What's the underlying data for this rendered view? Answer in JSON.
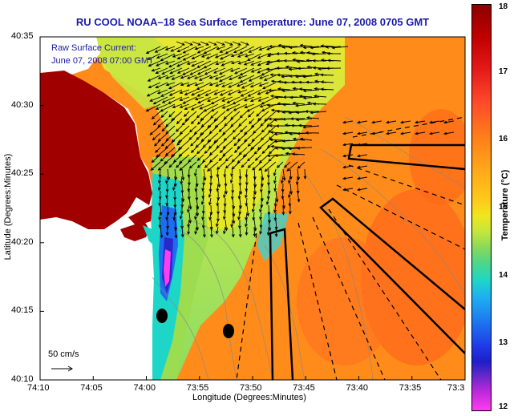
{
  "title": "RU COOL  NOAA–18  Sea Surface Temperature:  June 07, 2008 0705 GMT",
  "legend": {
    "line1": "Raw Surface Current:",
    "line2": "June 07, 2008 07:00 GMT"
  },
  "scale_label": "50 cm/s",
  "axes": {
    "xlabel": "Longitude (Degrees:Minutes)",
    "ylabel": "Latitude (Degrees:Minutes)",
    "x_ticks": [
      "74:10",
      "74:05",
      "74:00",
      "73:55",
      "73:50",
      "73:45",
      "73:40",
      "73:35",
      "73:3"
    ],
    "y_ticks": [
      "40:35",
      "40:30",
      "40:25",
      "40:20",
      "40:15",
      "40:10"
    ]
  },
  "colorbar": {
    "title": "Temperature (°C)",
    "ticks": [
      "18",
      "17",
      "16",
      "15",
      "14",
      "13",
      "12"
    ],
    "min": 12,
    "max": 18
  },
  "colors": {
    "land": "#a00000",
    "title_color": "#1a1aa8"
  }
}
